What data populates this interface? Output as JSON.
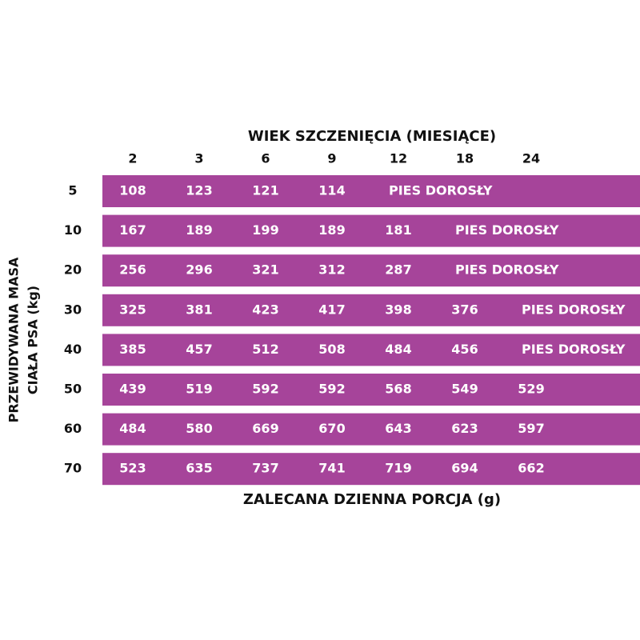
{
  "header": {
    "title": "WIEK SZCZENIĘCIA (MIESIĄCE)",
    "columns": [
      "2",
      "3",
      "6",
      "9",
      "12",
      "18",
      "24"
    ]
  },
  "side": {
    "label_lines": [
      "PRZEWIDYWANA MASA",
      "CIAŁA PSA (kg)"
    ]
  },
  "table": {
    "row_labels": [
      "5",
      "10",
      "20",
      "30",
      "40",
      "50",
      "60",
      "70"
    ],
    "rows": [
      [
        "108",
        "123",
        "121",
        "114",
        "PIES DOROSŁY"
      ],
      [
        "167",
        "189",
        "199",
        "189",
        "181",
        "PIES DOROSŁY"
      ],
      [
        "256",
        "296",
        "321",
        "312",
        "287",
        "PIES DOROSŁY"
      ],
      [
        "325",
        "381",
        "423",
        "417",
        "398",
        "376",
        "PIES DOROSŁY"
      ],
      [
        "385",
        "457",
        "512",
        "508",
        "484",
        "456",
        "PIES DOROSŁY"
      ],
      [
        "439",
        "519",
        "592",
        "592",
        "568",
        "549",
        "529"
      ],
      [
        "484",
        "580",
        "669",
        "670",
        "643",
        "623",
        "597"
      ],
      [
        "523",
        "635",
        "737",
        "741",
        "719",
        "694",
        "662"
      ]
    ]
  },
  "footer": {
    "caption": "ZALECANA DZIENNA PORCJA (g)"
  }
}
